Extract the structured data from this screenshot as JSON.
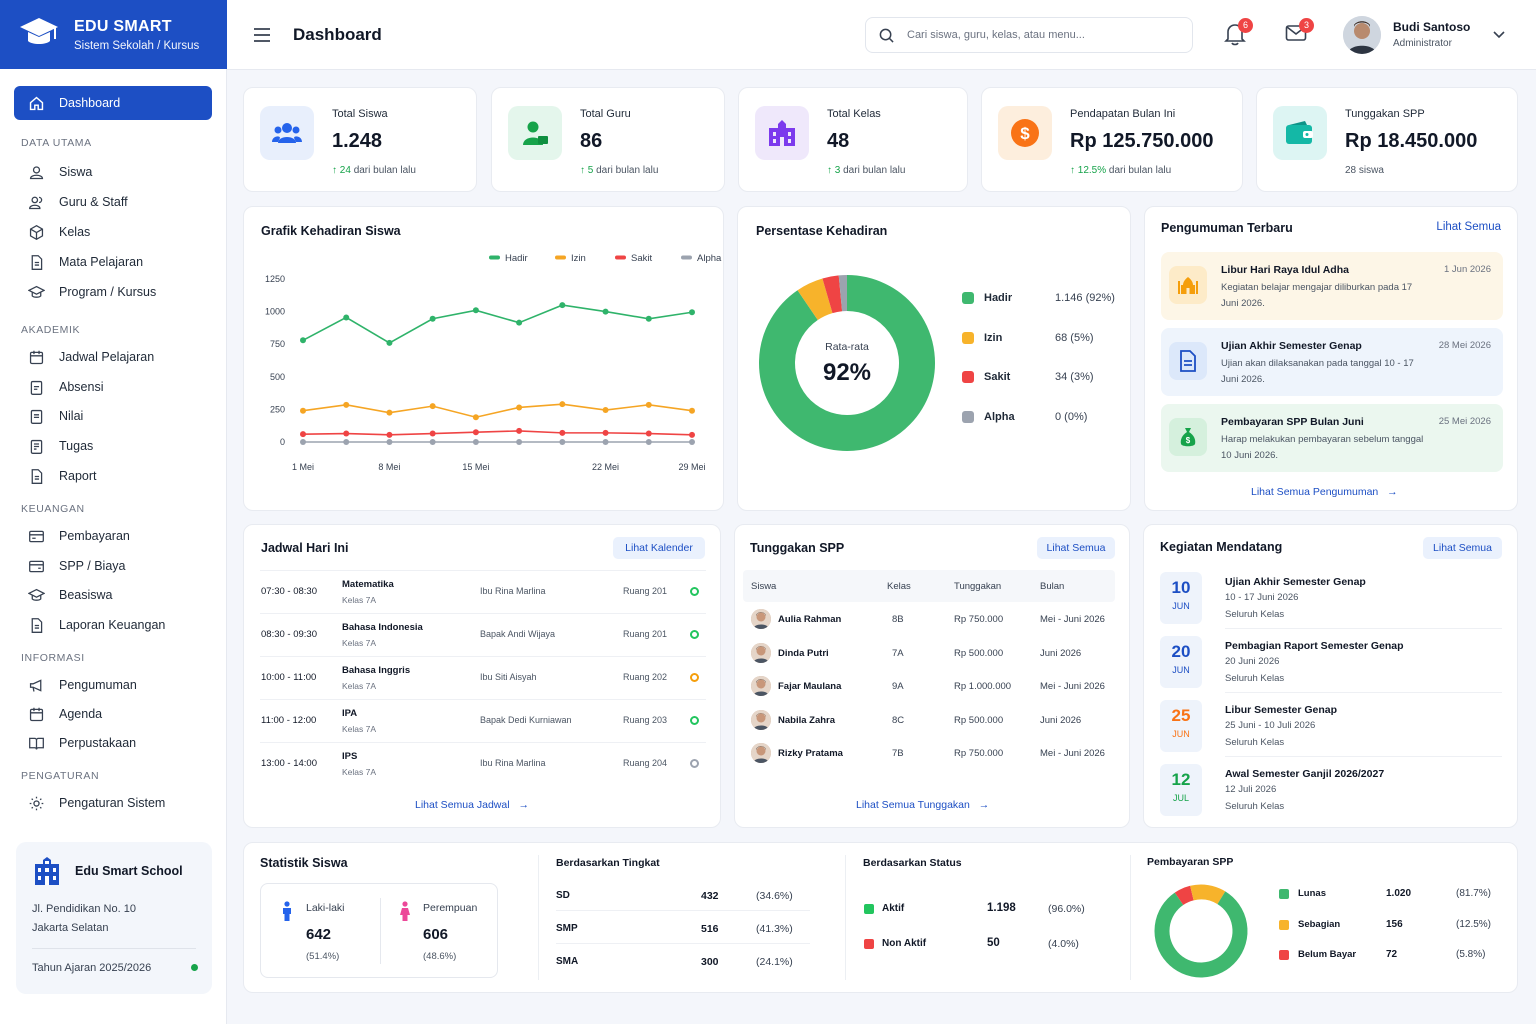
{
  "brand": {
    "name": "EDU SMART",
    "subtitle": "Sistem Sekolah / Kursus"
  },
  "header": {
    "title": "Dashboard",
    "search_placeholder": "Cari siswa, guru, kelas, atau menu...",
    "notif_count": "6",
    "mail_count": "3",
    "user_name": "Budi Santoso",
    "user_role": "Administrator"
  },
  "sidebar": {
    "dashboard": "Dashboard",
    "sections": {
      "data_utama": "DATA UTAMA",
      "akademik": "AKADEMIK",
      "keuangan": "KEUANGAN",
      "informasi": "INFORMASI",
      "pengaturan": "PENGATURAN"
    },
    "items": [
      "Siswa",
      "Guru & Staff",
      "Kelas",
      "Mata Pelajaran",
      "Program / Kursus",
      "Jadwal Pelajaran",
      "Absensi",
      "Nilai",
      "Tugas",
      "Raport",
      "Pembayaran",
      "SPP / Biaya",
      "Beasiswa",
      "Laporan Keuangan",
      "Pengumuman",
      "Agenda",
      "Perpustakaan",
      "Pengaturan Sistem"
    ],
    "school": {
      "name": "Edu Smart School",
      "address1": "Jl. Pendidikan No. 10",
      "address2": "Jakarta Selatan",
      "year": "Tahun Ajaran 2025/2026"
    }
  },
  "stats": [
    {
      "label": "Total Siswa",
      "value": "1.248",
      "change_num": "24",
      "change_text": "dari bulan lalu"
    },
    {
      "label": "Total Guru",
      "value": "86",
      "change_num": "5",
      "change_text": "dari bulan lalu"
    },
    {
      "label": "Total Kelas",
      "value": "48",
      "change_num": "3",
      "change_text": "dari bulan lalu"
    },
    {
      "label": "Pendapatan Bulan Ini",
      "value": "Rp 125.750.000",
      "change_num": "12.5%",
      "change_text": "dari bulan lalu"
    },
    {
      "label": "Tunggakan SPP",
      "value": "Rp 18.450.000",
      "change_num": "",
      "change_text": "28 siswa"
    }
  ],
  "attendance_chart": {
    "title": "Grafik Kehadiran Siswa"
  },
  "chart_data": {
    "type": "line",
    "x": [
      "1 Mei",
      "",
      "8 Mei",
      "",
      "15 Mei",
      "",
      "",
      "22 Mei",
      "",
      "29 Mei"
    ],
    "xticks": [
      "1 Mei",
      "8 Mei",
      "15 Mei",
      "22 Mei",
      "29 Mei"
    ],
    "ylim": [
      0,
      1250
    ],
    "yticks": [
      0,
      250,
      500,
      750,
      1000,
      1250
    ],
    "series": [
      {
        "name": "Hadir",
        "color": "#2fb36a",
        "values": [
          780,
          955,
          760,
          945,
          1010,
          915,
          1050,
          1000,
          945,
          995
        ]
      },
      {
        "name": "Izin",
        "color": "#f5a524",
        "values": [
          240,
          285,
          225,
          275,
          190,
          265,
          290,
          245,
          285,
          240
        ]
      },
      {
        "name": "Sakit",
        "color": "#ef4444",
        "values": [
          60,
          65,
          55,
          65,
          75,
          85,
          70,
          70,
          65,
          55
        ]
      },
      {
        "name": "Alpha",
        "color": "#9ca3af",
        "values": [
          0,
          0,
          0,
          0,
          0,
          0,
          0,
          0,
          0,
          0
        ]
      }
    ]
  },
  "persentase": {
    "title": "Persentase Kehadiran",
    "center_label": "Rata-rata",
    "center_value": "92%",
    "items": [
      {
        "name": "Hadir",
        "value": "1.146 (92%)",
        "color": "#3fb86f",
        "pct": 92
      },
      {
        "name": "Izin",
        "value": "68 (5%)",
        "color": "#f7b32b",
        "pct": 5
      },
      {
        "name": "Sakit",
        "value": "34 (3%)",
        "color": "#ef4444",
        "pct": 3
      },
      {
        "name": "Alpha",
        "value": "0 (0%)",
        "color": "#9ca3af",
        "pct": 0
      }
    ]
  },
  "announcements": {
    "title": "Pengumuman Terbaru",
    "link": "Lihat Semua",
    "footer_link": "Lihat Semua Pengumuman",
    "items": [
      {
        "title": "Libur Hari Raya Idul Adha",
        "desc": "Kegiatan belajar mengajar diliburkan pada 17 Juni 2026.",
        "date": "1 Jun 2026"
      },
      {
        "title": "Ujian Akhir Semester Genap",
        "desc": "Ujian akan dilaksanakan pada tanggal 10 - 17 Juni 2026.",
        "date": "28 Mei 2026"
      },
      {
        "title": "Pembayaran SPP Bulan Juni",
        "desc": "Harap melakukan pembayaran sebelum tanggal 10 Juni 2026.",
        "date": "25 Mei 2026"
      }
    ]
  },
  "schedule": {
    "title": "Jadwal Hari Ini",
    "link": "Lihat Kalender",
    "footer_link": "Lihat Semua Jadwal",
    "rows": [
      {
        "time": "07:30 - 08:30",
        "subject": "Matematika",
        "class": "Kelas 7A",
        "teacher": "Ibu Rina Marlina",
        "room": "Ruang 201",
        "status_color": "#22c55e"
      },
      {
        "time": "08:30 - 09:30",
        "subject": "Bahasa Indonesia",
        "class": "Kelas 7A",
        "teacher": "Bapak Andi Wijaya",
        "room": "Ruang 201",
        "status_color": "#22c55e"
      },
      {
        "time": "10:00 - 11:00",
        "subject": "Bahasa Inggris",
        "class": "Kelas 7A",
        "teacher": "Ibu Siti Aisyah",
        "room": "Ruang 202",
        "status_color": "#f59e0b"
      },
      {
        "time": "11:00 - 12:00",
        "subject": "IPA",
        "class": "Kelas 7A",
        "teacher": "Bapak Dedi Kurniawan",
        "room": "Ruang 203",
        "status_color": "#22c55e"
      },
      {
        "time": "13:00 - 14:00",
        "subject": "IPS",
        "class": "Kelas 7A",
        "teacher": "Ibu Rina Marlina",
        "room": "Ruang 204",
        "status_color": "#9ca3af"
      }
    ]
  },
  "tunggakan": {
    "title": "Tunggakan SPP",
    "link": "Lihat Semua",
    "footer_link": "Lihat Semua Tunggakan",
    "headers": [
      "Siswa",
      "Kelas",
      "Tunggakan",
      "Bulan"
    ],
    "rows": [
      {
        "name": "Aulia Rahman",
        "kelas": "8B",
        "amount": "Rp 750.000",
        "bulan": "Mei - Juni 2026"
      },
      {
        "name": "Dinda Putri",
        "kelas": "7A",
        "amount": "Rp 500.000",
        "bulan": "Juni 2026"
      },
      {
        "name": "Fajar Maulana",
        "kelas": "9A",
        "amount": "Rp 1.000.000",
        "bulan": "Mei - Juni 2026"
      },
      {
        "name": "Nabila Zahra",
        "kelas": "8C",
        "amount": "Rp 500.000",
        "bulan": "Juni 2026"
      },
      {
        "name": "Rizky Pratama",
        "kelas": "7B",
        "amount": "Rp 750.000",
        "bulan": "Mei - Juni 2026"
      }
    ]
  },
  "events": {
    "title": "Kegiatan Mendatang",
    "link": "Lihat Semua",
    "items": [
      {
        "day": "10",
        "month": "JUN",
        "title": "Ujian Akhir Semester Genap",
        "date": "10 - 17 Juni 2026",
        "who": "Seluruh Kelas",
        "color": "#1d4fc4"
      },
      {
        "day": "20",
        "month": "JUN",
        "title": "Pembagian Raport Semester Genap",
        "date": "20 Juni 2026",
        "who": "Seluruh Kelas",
        "color": "#1d4fc4"
      },
      {
        "day": "25",
        "month": "JUN",
        "title": "Libur Semester Genap",
        "date": "25 Juni - 10 Juli 2026",
        "who": "Seluruh Kelas",
        "color": "#f97316"
      },
      {
        "day": "12",
        "month": "JUL",
        "title": "Awal Semester Ganjil 2026/2027",
        "date": "12 Juli 2026",
        "who": "Seluruh Kelas",
        "color": "#16a34a"
      }
    ]
  },
  "statistik": {
    "title": "Statistik Siswa",
    "male": {
      "label": "Laki-laki",
      "value": "642",
      "pct": "(51.4%)"
    },
    "female": {
      "label": "Perempuan",
      "value": "606",
      "pct": "(48.6%)"
    },
    "tingkat": {
      "title": "Berdasarkan Tingkat",
      "rows": [
        {
          "name": "SD",
          "value": "432",
          "pct": "(34.6%)"
        },
        {
          "name": "SMP",
          "value": "516",
          "pct": "(41.3%)"
        },
        {
          "name": "SMA",
          "value": "300",
          "pct": "(24.1%)"
        }
      ]
    },
    "status": {
      "title": "Berdasarkan Status",
      "rows": [
        {
          "name": "Aktif",
          "value": "1.198",
          "pct": "(96.0%)",
          "color": "#22c55e"
        },
        {
          "name": "Non Aktif",
          "value": "50",
          "pct": "(4.0%)",
          "color": "#ef4444"
        }
      ]
    },
    "spp": {
      "title": "Pembayaran SPP",
      "rows": [
        {
          "name": "Lunas",
          "value": "1.020",
          "pct": "(81.7%)",
          "color": "#3fb86f",
          "share": 81.7
        },
        {
          "name": "Sebagian",
          "value": "156",
          "pct": "(12.5%)",
          "color": "#f7b32b",
          "share": 12.5
        },
        {
          "name": "Belum Bayar",
          "value": "72",
          "pct": "(5.8%)",
          "color": "#ef4444",
          "share": 5.8
        }
      ]
    }
  }
}
